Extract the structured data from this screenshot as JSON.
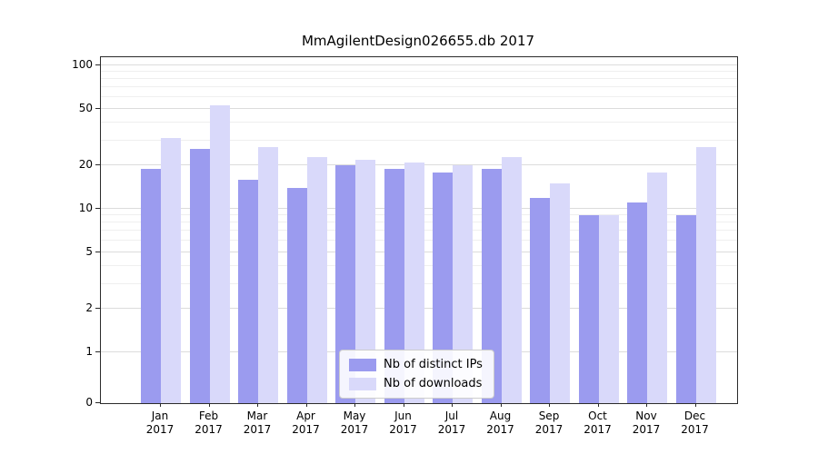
{
  "chart_data": {
    "type": "bar",
    "title": "MmAgilentDesign026655.db 2017",
    "categories": [
      {
        "month": "Jan",
        "year": "2017"
      },
      {
        "month": "Feb",
        "year": "2017"
      },
      {
        "month": "Mar",
        "year": "2017"
      },
      {
        "month": "Apr",
        "year": "2017"
      },
      {
        "month": "May",
        "year": "2017"
      },
      {
        "month": "Jun",
        "year": "2017"
      },
      {
        "month": "Jul",
        "year": "2017"
      },
      {
        "month": "Aug",
        "year": "2017"
      },
      {
        "month": "Sep",
        "year": "2017"
      },
      {
        "month": "Oct",
        "year": "2017"
      },
      {
        "month": "Nov",
        "year": "2017"
      },
      {
        "month": "Dec",
        "year": "2017"
      }
    ],
    "series": [
      {
        "name": "Nb of distinct IPs",
        "color": "#9b9bef",
        "values": [
          19,
          26,
          16,
          14,
          20,
          19,
          18,
          19,
          12,
          9,
          11,
          9
        ]
      },
      {
        "name": "Nb of downloads",
        "color": "#d9d9fa",
        "values": [
          31,
          53,
          27,
          23,
          22,
          21,
          20,
          23,
          15,
          9,
          18,
          27
        ]
      }
    ],
    "yscale": "symlog",
    "ylim": [
      0,
      120
    ],
    "yticks": [
      100,
      50,
      20,
      10,
      5,
      2,
      1,
      0
    ],
    "minor_yticks": [
      3,
      4,
      6,
      7,
      8,
      9,
      30,
      40,
      60,
      70,
      80,
      90
    ],
    "grid": true,
    "legend": {
      "position": "lower center"
    }
  }
}
